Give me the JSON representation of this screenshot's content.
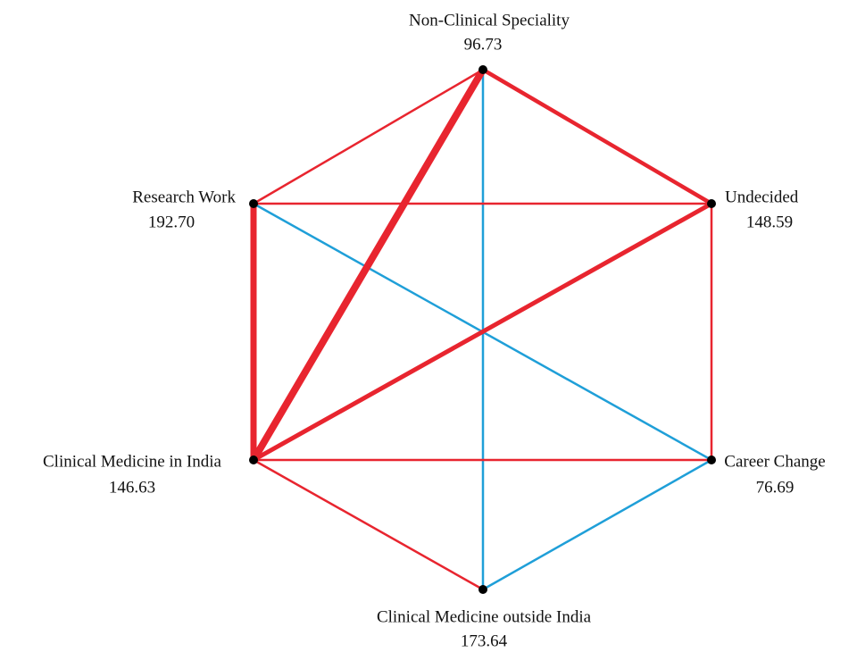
{
  "nodes": [
    {
      "label": "Non-Clinical Speciality",
      "value": "96.73"
    },
    {
      "label": "Undecided",
      "value": "148.59"
    },
    {
      "label": "Career Change",
      "value": "76.69"
    },
    {
      "label": "Clinical Medicine outside India",
      "value": "173.64"
    },
    {
      "label": "Clinical Medicine in India",
      "value": "146.63"
    },
    {
      "label": "Research Work",
      "value": "192.70"
    }
  ]
}
